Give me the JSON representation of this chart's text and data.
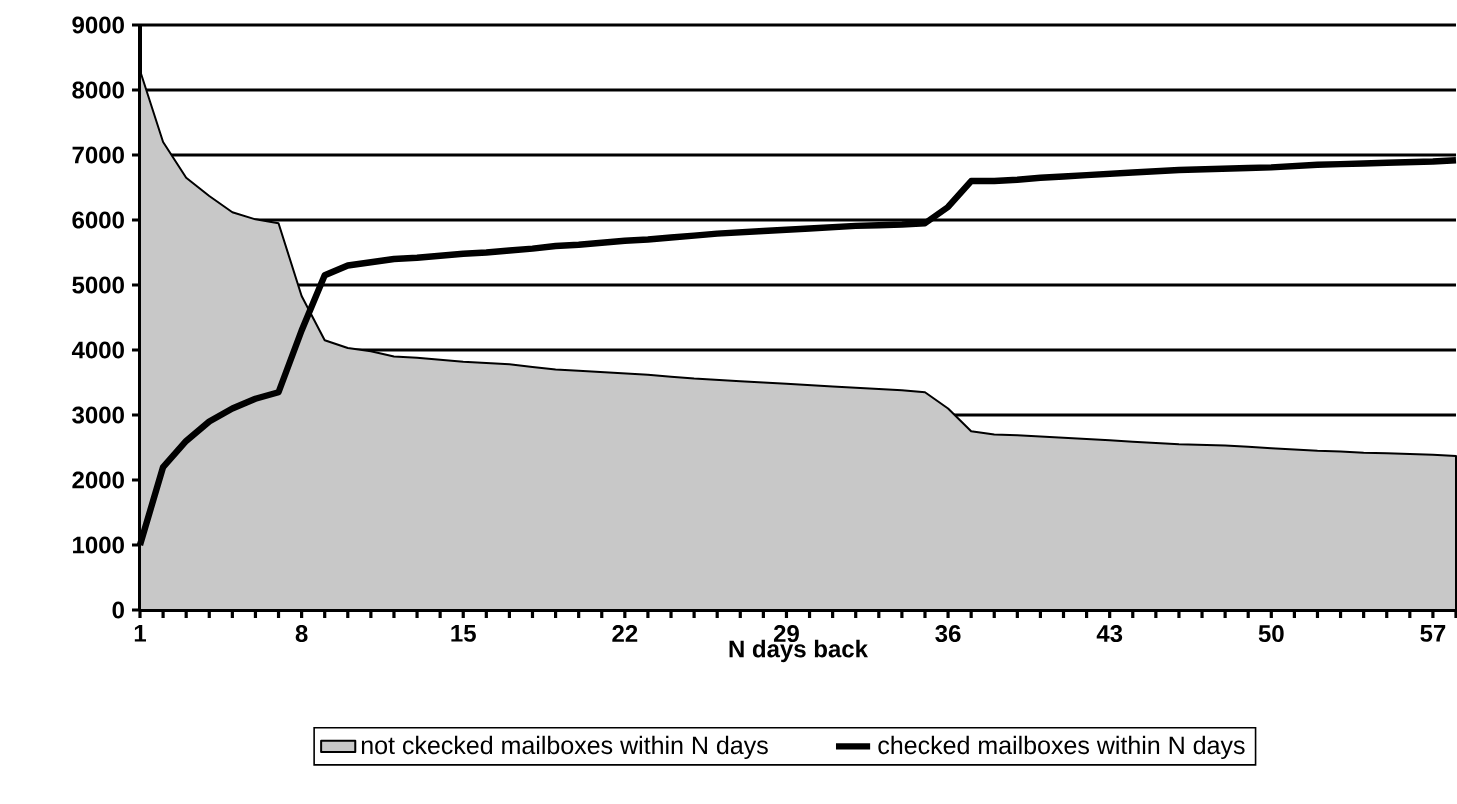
{
  "chart_data": {
    "type": "area",
    "xlabel": "N days back",
    "x": [
      1,
      2,
      3,
      4,
      5,
      6,
      7,
      8,
      9,
      10,
      11,
      12,
      13,
      14,
      15,
      16,
      17,
      18,
      19,
      20,
      21,
      22,
      23,
      24,
      25,
      26,
      27,
      28,
      29,
      30,
      31,
      32,
      33,
      34,
      35,
      36,
      37,
      38,
      39,
      40,
      41,
      42,
      43,
      44,
      45,
      46,
      47,
      48,
      49,
      50,
      51,
      52,
      53,
      54,
      55,
      56,
      57,
      58
    ],
    "series": [
      {
        "name": "not ckecked mailboxes within N days",
        "color": "#c8c8c8",
        "values": [
          8300,
          7200,
          6650,
          6370,
          6120,
          6010,
          5950,
          4830,
          4150,
          4030,
          3980,
          3900,
          3880,
          3850,
          3820,
          3800,
          3780,
          3740,
          3700,
          3680,
          3660,
          3640,
          3620,
          3590,
          3560,
          3540,
          3520,
          3500,
          3480,
          3460,
          3440,
          3420,
          3400,
          3380,
          3350,
          3100,
          2750,
          2700,
          2690,
          2670,
          2650,
          2630,
          2610,
          2590,
          2570,
          2550,
          2540,
          2530,
          2510,
          2490,
          2470,
          2450,
          2440,
          2420,
          2410,
          2400,
          2390,
          2370
        ]
      },
      {
        "name": "checked mailboxes within N days",
        "type": "line",
        "color": "#000000",
        "values": [
          1000,
          2200,
          2600,
          2900,
          3100,
          3250,
          3350,
          4300,
          5150,
          5300,
          5350,
          5400,
          5420,
          5450,
          5480,
          5500,
          5530,
          5560,
          5600,
          5620,
          5650,
          5680,
          5700,
          5730,
          5760,
          5790,
          5810,
          5830,
          5850,
          5870,
          5890,
          5910,
          5920,
          5930,
          5950,
          6200,
          6600,
          6600,
          6620,
          6650,
          6670,
          6690,
          6710,
          6730,
          6750,
          6770,
          6780,
          6790,
          6800,
          6810,
          6830,
          6850,
          6860,
          6870,
          6880,
          6890,
          6900,
          6920
        ]
      }
    ],
    "xlim": [
      1,
      58
    ],
    "ylim": [
      0,
      9000
    ],
    "xticks": [
      1,
      {
        "value": 2,
        "label": null
      },
      {
        "value": 3,
        "label": null
      },
      {
        "value": 4,
        "label": null
      },
      {
        "value": 5,
        "label": null
      },
      {
        "value": 6,
        "label": null
      },
      {
        "value": 7,
        "label": null
      },
      8,
      {
        "value": 9,
        "label": null
      },
      {
        "value": 10,
        "label": null
      },
      {
        "value": 11,
        "label": null
      },
      {
        "value": 12,
        "label": null
      },
      {
        "value": 13,
        "label": null
      },
      {
        "value": 14,
        "label": null
      },
      15,
      {
        "value": 16,
        "label": null
      },
      {
        "value": 17,
        "label": null
      },
      {
        "value": 18,
        "label": null
      },
      {
        "value": 19,
        "label": null
      },
      {
        "value": 20,
        "label": null
      },
      {
        "value": 21,
        "label": null
      },
      22,
      {
        "value": 23,
        "label": null
      },
      {
        "value": 24,
        "label": null
      },
      {
        "value": 25,
        "label": null
      },
      {
        "value": 26,
        "label": null
      },
      {
        "value": 27,
        "label": null
      },
      {
        "value": 28,
        "label": null
      },
      29,
      {
        "value": 30,
        "label": null
      },
      {
        "value": 31,
        "label": null
      },
      {
        "value": 32,
        "label": null
      },
      {
        "value": 33,
        "label": null
      },
      {
        "value": 34,
        "label": null
      },
      {
        "value": 35,
        "label": null
      },
      36,
      {
        "value": 37,
        "label": null
      },
      {
        "value": 38,
        "label": null
      },
      {
        "value": 39,
        "label": null
      },
      {
        "value": 40,
        "label": null
      },
      {
        "value": 41,
        "label": null
      },
      {
        "value": 42,
        "label": null
      },
      43,
      {
        "value": 44,
        "label": null
      },
      {
        "value": 45,
        "label": null
      },
      {
        "value": 46,
        "label": null
      },
      {
        "value": 47,
        "label": null
      },
      {
        "value": 48,
        "label": null
      },
      {
        "value": 49,
        "label": null
      },
      50,
      {
        "value": 51,
        "label": null
      },
      {
        "value": 52,
        "label": null
      },
      {
        "value": 53,
        "label": null
      },
      {
        "value": 54,
        "label": null
      },
      {
        "value": 55,
        "label": null
      },
      {
        "value": 56,
        "label": null
      },
      57,
      {
        "value": 58,
        "label": null
      }
    ],
    "yticks": [
      0,
      1000,
      2000,
      3000,
      4000,
      5000,
      6000,
      7000,
      8000,
      9000
    ],
    "grid": "y",
    "legend": "bottom"
  }
}
